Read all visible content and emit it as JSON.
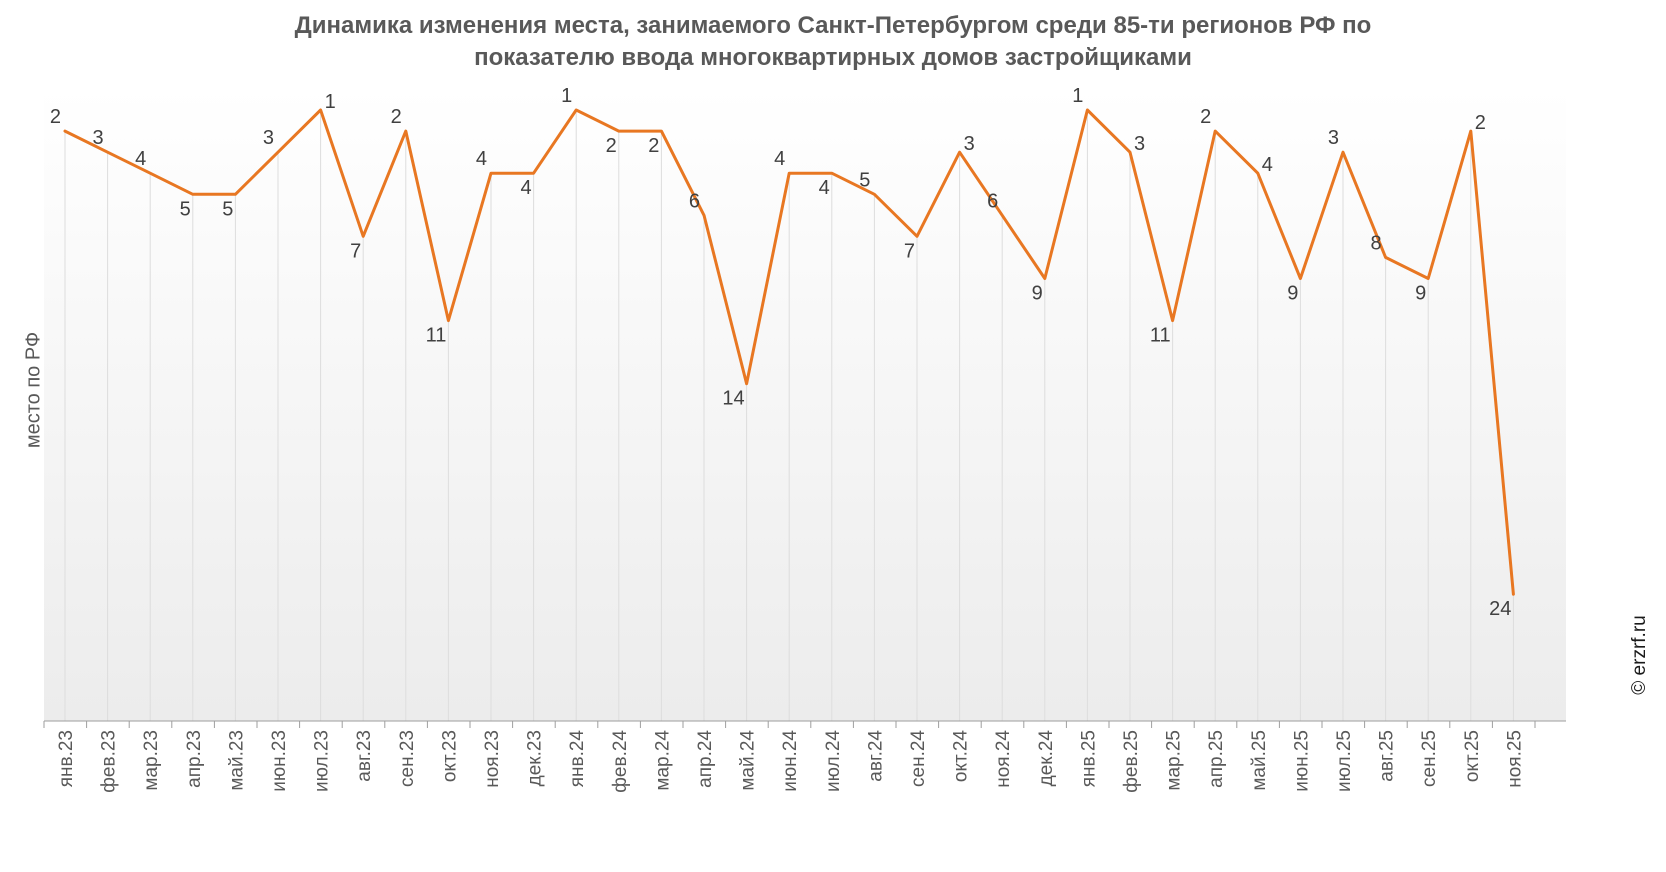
{
  "chart_data": {
    "type": "line",
    "title": "Динамика изменения места, занимаемого Санкт-Петербургом среди 85-ти регионов РФ по показателю ввода многоквартирных домов застройщиками",
    "title_lines": [
      "Динамика изменения места, занимаемого Санкт-Петербургом среди 85-ти регионов РФ по",
      "показателю ввода многоквартирных домов застройщиками"
    ],
    "ylabel": "место по РФ",
    "xlabel": "",
    "y_inverted": true,
    "ylim": [
      0,
      30
    ],
    "grid": "vertical",
    "categories": [
      "янв.23",
      "фев.23",
      "мар.23",
      "апр.23",
      "май.23",
      "июн.23",
      "июл.23",
      "авг.23",
      "сен.23",
      "окт.23",
      "ноя.23",
      "дек.23",
      "янв.24",
      "фев.24",
      "мар.24",
      "апр.24",
      "май.24",
      "июн.24",
      "июл.24",
      "авг.24",
      "сен.24",
      "окт.24",
      "ноя.24",
      "дек.24",
      "янв.25",
      "фев.25",
      "мар.25",
      "апр.25",
      "май.25",
      "июн.25",
      "июл.25",
      "авг.25",
      "сен.25",
      "окт.25",
      "ноя.25"
    ],
    "series": [
      {
        "values": [
          2,
          3,
          4,
          5,
          5,
          3,
          1,
          7,
          2,
          11,
          4,
          4,
          1,
          2,
          2,
          6,
          14,
          4,
          4,
          5,
          7,
          3,
          6,
          9,
          1,
          3,
          11,
          2,
          4,
          9,
          3,
          8,
          9,
          2,
          24
        ],
        "label_side": [
          "L",
          "L",
          "L",
          "B",
          "B",
          "L",
          "R",
          "B",
          "L",
          "B",
          "L",
          "B",
          "L",
          "B",
          "B",
          "L",
          "B",
          "L",
          "B",
          "L",
          "B",
          "R",
          "L",
          "B",
          "L",
          "R",
          "B",
          "L",
          "R",
          "B",
          "L",
          "L",
          "B",
          "R",
          "B"
        ],
        "color": "#E87722"
      }
    ]
  },
  "watermark": "© erzrf.ru",
  "colors": {
    "line": "#E87722",
    "text": "#595959",
    "grid": "#dddddd"
  }
}
